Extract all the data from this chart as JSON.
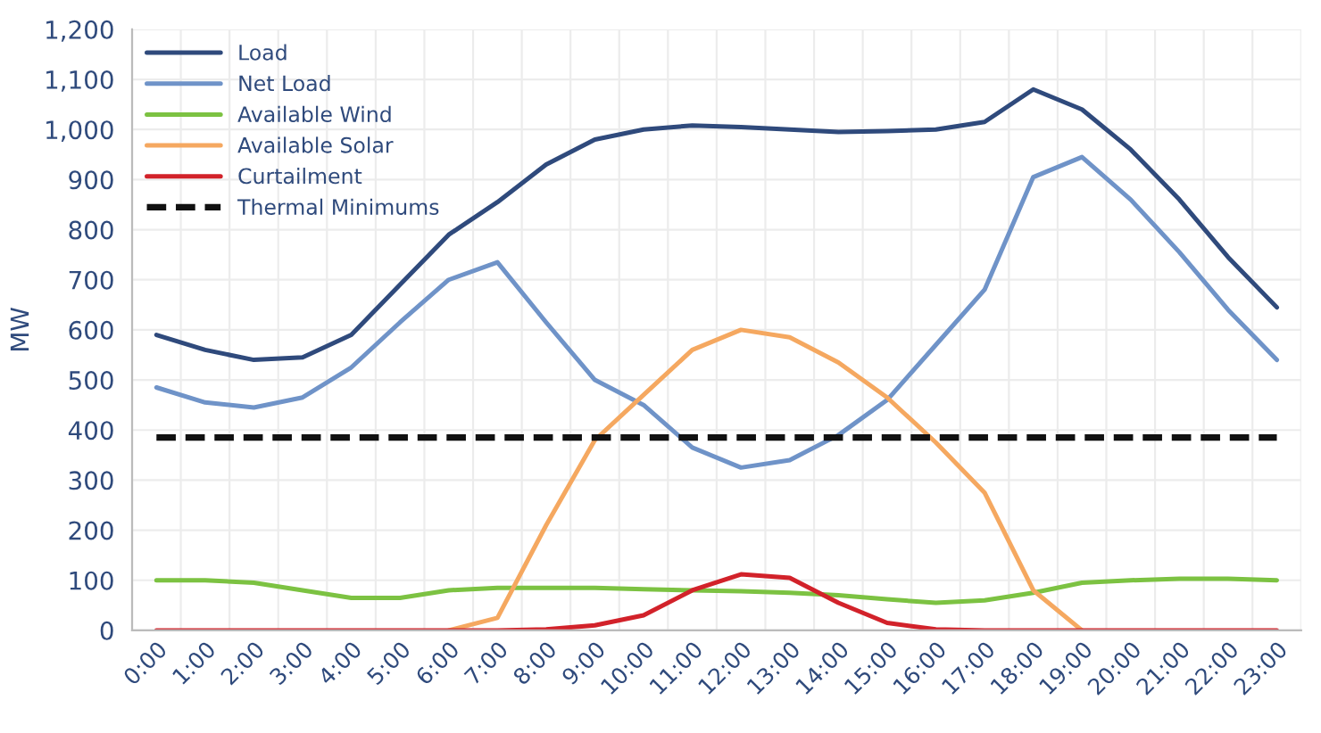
{
  "chart_data": {
    "type": "line",
    "ylabel": "MW",
    "categories": [
      "0:00",
      "1:00",
      "2:00",
      "3:00",
      "4:00",
      "5:00",
      "6:00",
      "7:00",
      "8:00",
      "9:00",
      "10:00",
      "11:00",
      "12:00",
      "13:00",
      "14:00",
      "15:00",
      "16:00",
      "17:00",
      "18:00",
      "19:00",
      "20:00",
      "21:00",
      "22:00",
      "23:00"
    ],
    "series": [
      {
        "name": "Load",
        "color": "#2f4a7c",
        "values": [
          590,
          560,
          540,
          545,
          590,
          690,
          790,
          855,
          930,
          980,
          1000,
          1008,
          1005,
          1000,
          995,
          997,
          1000,
          1015,
          1080,
          1040,
          960,
          860,
          745,
          645
        ]
      },
      {
        "name": "Net Load",
        "color": "#6f93c8",
        "values": [
          485,
          455,
          445,
          465,
          525,
          615,
          700,
          735,
          615,
          500,
          450,
          365,
          325,
          340,
          390,
          460,
          570,
          680,
          905,
          945,
          860,
          755,
          640,
          540
        ]
      },
      {
        "name": "Available Wind",
        "color": "#7cc242",
        "values": [
          100,
          100,
          95,
          80,
          65,
          65,
          80,
          85,
          85,
          85,
          82,
          80,
          78,
          75,
          70,
          62,
          55,
          60,
          75,
          95,
          100,
          103,
          103,
          100
        ]
      },
      {
        "name": "Available Solar",
        "color": "#f5a860",
        "values": [
          null,
          null,
          null,
          null,
          null,
          null,
          0,
          25,
          210,
          380,
          470,
          560,
          600,
          585,
          535,
          465,
          375,
          275,
          80,
          0,
          null,
          null,
          null,
          null
        ]
      },
      {
        "name": "Curtailment",
        "color": "#d2222a",
        "values": [
          0,
          0,
          0,
          0,
          0,
          0,
          0,
          0,
          2,
          10,
          30,
          80,
          112,
          105,
          55,
          15,
          2,
          0,
          0,
          0,
          0,
          0,
          0,
          0
        ]
      },
      {
        "name": "Thermal Minimums",
        "color": "#111111",
        "line_style": "dashed",
        "values": [
          385,
          385,
          385,
          385,
          385,
          385,
          385,
          385,
          385,
          385,
          385,
          385,
          385,
          385,
          385,
          385,
          385,
          385,
          385,
          385,
          385,
          385,
          385,
          385
        ]
      }
    ],
    "ylim": [
      0,
      1200
    ],
    "yticks": [
      0,
      {
        "value": 100,
        "label": "100"
      },
      200,
      300,
      400,
      500,
      600,
      700,
      800,
      900,
      {
        "value": 1000,
        "label": "1,000"
      },
      {
        "value": 1100,
        "label": "1,100"
      },
      {
        "value": 1200,
        "label": "1,200"
      }
    ],
    "grid": true,
    "legend": "top left",
    "marker": "none",
    "line_style": "solid"
  }
}
